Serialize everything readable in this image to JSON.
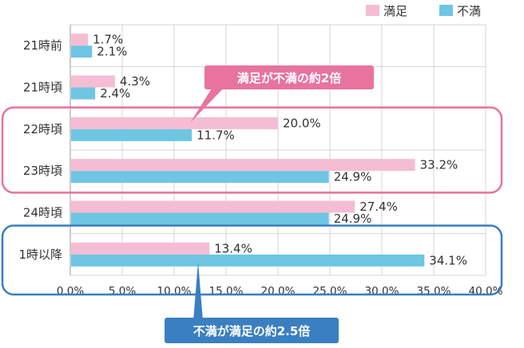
{
  "chart_data": {
    "type": "bar",
    "orientation": "horizontal",
    "categories": [
      "21時前",
      "21時頃",
      "22時頃",
      "23時頃",
      "24時頃",
      "1時以降"
    ],
    "series": [
      {
        "name": "満足",
        "values": [
          1.7,
          4.3,
          20.0,
          33.2,
          27.4,
          13.4
        ],
        "labels": [
          "1.7%",
          "4.3%",
          "20.0%",
          "33.2%",
          "27.4%",
          "13.4%"
        ],
        "color": "#f5bdd3"
      },
      {
        "name": "不満",
        "values": [
          2.1,
          2.4,
          11.7,
          24.9,
          24.9,
          34.1
        ],
        "labels": [
          "2.1%",
          "2.4%",
          "11.7%",
          "24.9%",
          "24.9%",
          "34.1%"
        ],
        "color": "#6fc6e2"
      }
    ],
    "xlim": [
      0,
      40
    ],
    "xticks": [
      "0.0%",
      "5.0%",
      "10.0%",
      "15.0%",
      "20.0%",
      "25.0%",
      "30.0%",
      "35.0%",
      "40.0%"
    ],
    "grid": true,
    "legend": "top-right",
    "annotations": [
      {
        "text": "満足が不満の約2倍",
        "color": "#e8739e",
        "highlight": [
          "22時頃",
          "23時頃"
        ]
      },
      {
        "text": "不満が満足の約2.5倍",
        "color": "#3a7fc1",
        "highlight": [
          "1時以降"
        ]
      }
    ]
  }
}
